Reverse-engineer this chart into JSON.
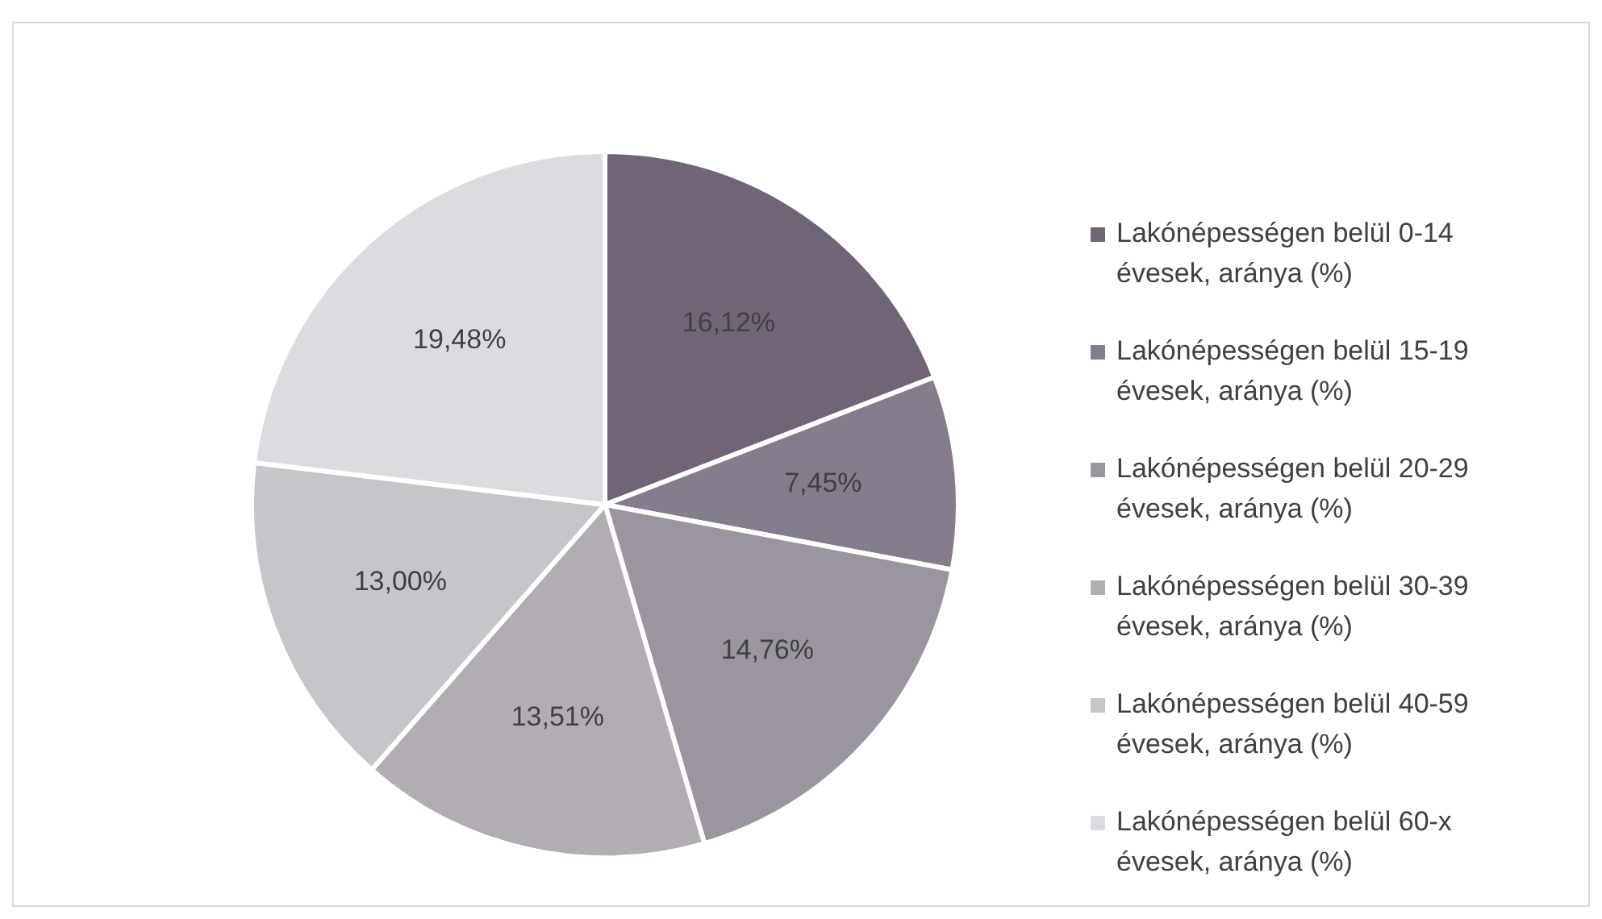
{
  "chart_data": {
    "type": "pie",
    "categories": [
      "Lakónépességen belül 0-14 évesek, aránya  (%)",
      "Lakónépességen belül 15-19 évesek, aránya  (%)",
      "Lakónépességen belül 20-29 évesek, aránya  (%)",
      "Lakónépességen belül 30-39 évesek, aránya  (%)",
      "Lakónépességen belül 40-59 évesek, aránya  (%)",
      "Lakónépességen belül 60-x évesek, aránya  (%)"
    ],
    "values": [
      16.12,
      7.45,
      14.76,
      13.51,
      13.0,
      19.48
    ],
    "value_labels": [
      "16,12%",
      "7,45%",
      "14,76%",
      "13,51%",
      "13,00%",
      "19,48%"
    ],
    "colors": [
      "#6f6577",
      "#857c8c",
      "#9a959e",
      "#b1adb3",
      "#c8c5ca",
      "#dddbe0"
    ],
    "legend": "right"
  }
}
